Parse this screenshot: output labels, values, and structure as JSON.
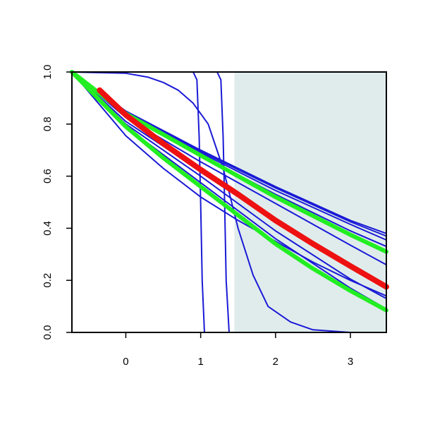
{
  "chart_data": {
    "type": "line",
    "title": "",
    "xlabel": "",
    "ylabel": "",
    "xlim": [
      -0.72,
      3.48
    ],
    "ylim": [
      0.0,
      1.0
    ],
    "xticks": [
      {
        "value": 0,
        "label": "0"
      },
      {
        "value": 1,
        "label": "1"
      },
      {
        "value": 2,
        "label": "2"
      },
      {
        "value": 3,
        "label": "3"
      }
    ],
    "yticks": [
      {
        "value": 0.0,
        "label": "0.0"
      },
      {
        "value": 0.2,
        "label": "0.2"
      },
      {
        "value": 0.4,
        "label": "0.4"
      },
      {
        "value": 0.6,
        "label": "0.6"
      },
      {
        "value": 0.8,
        "label": "0.8"
      },
      {
        "value": 1.0,
        "label": "1.0"
      }
    ],
    "shaded_region": {
      "x_from": 1.45,
      "x_to": 3.48,
      "color": "#e0ecec"
    },
    "grid": false,
    "legend": "none",
    "colors": {
      "blue": "#1a1ad6",
      "red": "#ee1111",
      "green": "#22ee22"
    },
    "series": [
      {
        "color": "blue",
        "width": 2,
        "points": [
          [
            -0.72,
            1.0
          ],
          [
            0.9,
            1.0
          ],
          [
            0.95,
            0.97
          ],
          [
            0.98,
            0.75
          ],
          [
            1.0,
            0.5
          ],
          [
            1.02,
            0.2
          ],
          [
            1.05,
            0.0
          ]
        ]
      },
      {
        "color": "blue",
        "width": 2,
        "points": [
          [
            -0.72,
            1.0
          ],
          [
            1.22,
            1.0
          ],
          [
            1.27,
            0.97
          ],
          [
            1.3,
            0.75
          ],
          [
            1.32,
            0.5
          ],
          [
            1.34,
            0.2
          ],
          [
            1.38,
            0.0
          ],
          [
            3.48,
            0.0
          ]
        ]
      },
      {
        "color": "blue",
        "width": 2,
        "points": [
          [
            -0.72,
            1.0
          ],
          [
            0.0,
            0.995
          ],
          [
            0.3,
            0.98
          ],
          [
            0.5,
            0.96
          ],
          [
            0.7,
            0.93
          ],
          [
            0.9,
            0.88
          ],
          [
            1.1,
            0.8
          ],
          [
            1.3,
            0.63
          ],
          [
            1.5,
            0.4
          ],
          [
            1.7,
            0.22
          ],
          [
            1.9,
            0.1
          ],
          [
            2.2,
            0.04
          ],
          [
            2.5,
            0.01
          ],
          [
            3.0,
            0.0
          ],
          [
            3.48,
            0.0
          ]
        ]
      },
      {
        "color": "blue",
        "width": 2,
        "points": [
          [
            -0.72,
            1.0
          ],
          [
            0.0,
            0.85
          ],
          [
            1.0,
            0.7
          ],
          [
            2.0,
            0.56
          ],
          [
            3.0,
            0.43
          ],
          [
            3.48,
            0.38
          ]
        ]
      },
      {
        "color": "blue",
        "width": 2,
        "points": [
          [
            -0.72,
            1.0
          ],
          [
            0.0,
            0.848
          ],
          [
            1.0,
            0.695
          ],
          [
            2.0,
            0.555
          ],
          [
            3.0,
            0.425
          ],
          [
            3.48,
            0.37
          ]
        ]
      },
      {
        "color": "blue",
        "width": 2,
        "points": [
          [
            -0.72,
            1.0
          ],
          [
            0.0,
            0.845
          ],
          [
            1.0,
            0.69
          ],
          [
            2.0,
            0.545
          ],
          [
            3.0,
            0.415
          ],
          [
            3.48,
            0.355
          ]
        ]
      },
      {
        "color": "blue",
        "width": 2,
        "points": [
          [
            -0.72,
            1.0
          ],
          [
            0.0,
            0.84
          ],
          [
            1.0,
            0.68
          ],
          [
            2.0,
            0.53
          ],
          [
            3.0,
            0.39
          ],
          [
            3.48,
            0.33
          ]
        ]
      },
      {
        "color": "blue",
        "width": 2,
        "points": [
          [
            -0.72,
            1.0
          ],
          [
            0.0,
            0.825
          ],
          [
            1.0,
            0.655
          ],
          [
            2.0,
            0.495
          ],
          [
            3.0,
            0.335
          ],
          [
            3.48,
            0.26
          ]
        ]
      },
      {
        "color": "blue",
        "width": 2,
        "points": [
          [
            -0.72,
            1.0
          ],
          [
            0.0,
            0.81
          ],
          [
            1.0,
            0.62
          ],
          [
            2.0,
            0.43
          ],
          [
            3.0,
            0.255
          ],
          [
            3.48,
            0.18
          ]
        ]
      },
      {
        "color": "blue",
        "width": 2,
        "points": [
          [
            -0.72,
            1.0
          ],
          [
            0.0,
            0.8
          ],
          [
            1.0,
            0.6
          ],
          [
            2.0,
            0.39
          ],
          [
            3.0,
            0.205
          ],
          [
            3.48,
            0.13
          ]
        ]
      },
      {
        "color": "blue",
        "width": 2,
        "points": [
          [
            -0.72,
            1.0
          ],
          [
            0.0,
            0.79
          ],
          [
            1.0,
            0.575
          ],
          [
            2.0,
            0.36
          ],
          [
            3.0,
            0.17
          ],
          [
            3.48,
            0.09
          ]
        ]
      },
      {
        "color": "blue",
        "width": 2,
        "points": [
          [
            -0.72,
            1.0
          ],
          [
            0.0,
            0.755
          ],
          [
            0.5,
            0.63
          ],
          [
            1.0,
            0.52
          ],
          [
            1.5,
            0.43
          ],
          [
            2.0,
            0.35
          ],
          [
            2.5,
            0.27
          ],
          [
            3.0,
            0.2
          ],
          [
            3.48,
            0.14
          ]
        ]
      },
      {
        "color": "green",
        "width": 6,
        "points": [
          [
            -0.72,
            1.0
          ],
          [
            0.0,
            0.84
          ],
          [
            1.0,
            0.68
          ],
          [
            2.0,
            0.52
          ],
          [
            3.0,
            0.375
          ],
          [
            3.48,
            0.31
          ]
        ]
      },
      {
        "color": "green",
        "width": 6,
        "points": [
          [
            -0.72,
            1.0
          ],
          [
            0.0,
            0.79
          ],
          [
            0.5,
            0.67
          ],
          [
            1.0,
            0.56
          ],
          [
            1.5,
            0.45
          ],
          [
            2.0,
            0.34
          ],
          [
            2.5,
            0.245
          ],
          [
            3.0,
            0.16
          ],
          [
            3.48,
            0.085
          ]
        ]
      },
      {
        "color": "red",
        "width": 8,
        "points": [
          [
            -0.35,
            0.93
          ],
          [
            0.0,
            0.835
          ],
          [
            0.5,
            0.725
          ],
          [
            1.0,
            0.625
          ],
          [
            1.5,
            0.53
          ],
          [
            2.0,
            0.43
          ],
          [
            2.5,
            0.34
          ],
          [
            3.0,
            0.255
          ],
          [
            3.48,
            0.175
          ]
        ]
      }
    ]
  }
}
